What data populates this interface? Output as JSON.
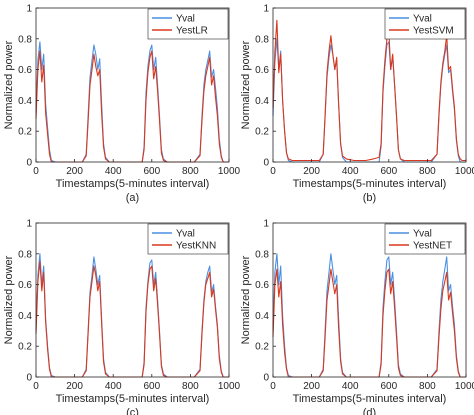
{
  "colors": {
    "yval": "#4a90e2",
    "yest": "#d9381e",
    "axis": "#262626"
  },
  "chart_data": [
    {
      "type": "line",
      "caption": "(a)",
      "xlabel": "Timestamps(5-minutes interval)",
      "ylabel": "Normalized power",
      "xlim": [
        0,
        1000
      ],
      "ylim": [
        0,
        1
      ],
      "xticks": [
        "0",
        "200",
        "400",
        "600",
        "800",
        "1000"
      ],
      "yticks": [
        "0",
        "0.2",
        "0.4",
        "0.6",
        "0.8",
        "1"
      ],
      "legend_position": "top-right",
      "grid": false,
      "series": [
        {
          "name": "Yval",
          "x": [
            0,
            10,
            20,
            30,
            40,
            50,
            60,
            70,
            80,
            100,
            150,
            200,
            240,
            260,
            270,
            280,
            290,
            300,
            310,
            320,
            330,
            340,
            350,
            360,
            380,
            420,
            480,
            520,
            550,
            560,
            570,
            580,
            590,
            600,
            610,
            620,
            630,
            640,
            650,
            660,
            680,
            720,
            780,
            820,
            850,
            860,
            870,
            880,
            890,
            900,
            910,
            920,
            930,
            940,
            950,
            960,
            970,
            980,
            1000
          ],
          "values": [
            0.32,
            0.66,
            0.78,
            0.6,
            0.7,
            0.38,
            0.22,
            0.08,
            0.01,
            0,
            0,
            0,
            0,
            0.05,
            0.3,
            0.55,
            0.66,
            0.76,
            0.7,
            0.6,
            0.67,
            0.38,
            0.12,
            0.03,
            0,
            0,
            0,
            0,
            0,
            0.1,
            0.45,
            0.62,
            0.72,
            0.76,
            0.6,
            0.68,
            0.5,
            0.3,
            0.08,
            0.02,
            0,
            0,
            0,
            0,
            0.05,
            0.3,
            0.5,
            0.6,
            0.66,
            0.72,
            0.55,
            0.6,
            0.48,
            0.35,
            0.15,
            0.04,
            0,
            0,
            0
          ]
        },
        {
          "name": "YestLR",
          "x": [
            0,
            10,
            20,
            30,
            40,
            50,
            60,
            70,
            80,
            100,
            150,
            200,
            240,
            260,
            270,
            280,
            290,
            300,
            310,
            320,
            330,
            340,
            350,
            360,
            380,
            420,
            480,
            520,
            550,
            560,
            570,
            580,
            590,
            600,
            610,
            620,
            630,
            640,
            650,
            660,
            680,
            720,
            780,
            820,
            850,
            860,
            870,
            880,
            890,
            900,
            910,
            920,
            930,
            940,
            950,
            960,
            970,
            980,
            1000
          ],
          "values": [
            0.28,
            0.6,
            0.72,
            0.52,
            0.63,
            0.32,
            0.18,
            0.05,
            0,
            0,
            0,
            0,
            0,
            0.04,
            0.26,
            0.5,
            0.6,
            0.7,
            0.62,
            0.56,
            0.6,
            0.32,
            0.1,
            0.02,
            0,
            0,
            0,
            0,
            0,
            0.08,
            0.4,
            0.58,
            0.68,
            0.72,
            0.54,
            0.62,
            0.46,
            0.27,
            0.06,
            0.01,
            0,
            0,
            0,
            0,
            0.04,
            0.27,
            0.46,
            0.56,
            0.62,
            0.68,
            0.5,
            0.56,
            0.42,
            0.3,
            0.12,
            0.03,
            0,
            0,
            0
          ]
        }
      ]
    },
    {
      "type": "line",
      "caption": "(b)",
      "xlabel": "Timestamps(5-minutes interval)",
      "ylabel": "Normalized power",
      "xlim": [
        0,
        1000
      ],
      "ylim": [
        0,
        1
      ],
      "xticks": [
        "0",
        "200",
        "400",
        "600",
        "800",
        "1000"
      ],
      "yticks": [
        "0",
        "0.2",
        "0.4",
        "0.6",
        "0.8",
        "1"
      ],
      "legend_position": "top-right",
      "grid": false,
      "series": [
        {
          "name": "Yval",
          "x": [
            0,
            10,
            20,
            30,
            40,
            50,
            60,
            70,
            80,
            100,
            150,
            200,
            240,
            260,
            270,
            280,
            290,
            300,
            310,
            320,
            330,
            340,
            350,
            360,
            380,
            420,
            480,
            520,
            550,
            560,
            570,
            580,
            590,
            600,
            610,
            620,
            630,
            640,
            650,
            660,
            680,
            720,
            780,
            820,
            850,
            860,
            870,
            880,
            890,
            900,
            910,
            920,
            930,
            940,
            950,
            960,
            970,
            980,
            1000
          ],
          "values": [
            0.3,
            0.65,
            0.8,
            0.6,
            0.72,
            0.4,
            0.2,
            0.06,
            0.01,
            0,
            0,
            0,
            0,
            0.05,
            0.3,
            0.55,
            0.68,
            0.76,
            0.7,
            0.6,
            0.66,
            0.38,
            0.12,
            0.03,
            0,
            0,
            0,
            0,
            0,
            0.1,
            0.45,
            0.62,
            0.76,
            0.78,
            0.6,
            0.68,
            0.5,
            0.3,
            0.08,
            0.02,
            0,
            0,
            0,
            0,
            0.05,
            0.3,
            0.5,
            0.62,
            0.7,
            0.76,
            0.58,
            0.6,
            0.46,
            0.34,
            0.14,
            0.04,
            0,
            0,
            0
          ]
        },
        {
          "name": "YestSVM",
          "x": [
            0,
            10,
            20,
            30,
            40,
            50,
            60,
            70,
            80,
            100,
            150,
            200,
            240,
            260,
            270,
            280,
            290,
            300,
            310,
            320,
            330,
            340,
            350,
            360,
            380,
            420,
            480,
            520,
            550,
            560,
            570,
            580,
            590,
            600,
            610,
            620,
            630,
            640,
            650,
            660,
            680,
            720,
            780,
            820,
            850,
            860,
            870,
            880,
            890,
            900,
            910,
            920,
            930,
            940,
            950,
            960,
            970,
            980,
            1000
          ],
          "values": [
            0.35,
            0.72,
            0.92,
            0.58,
            0.7,
            0.4,
            0.2,
            0.06,
            0.02,
            0.01,
            0.01,
            0.01,
            0.01,
            0.05,
            0.3,
            0.58,
            0.72,
            0.82,
            0.7,
            0.6,
            0.68,
            0.38,
            0.12,
            0.04,
            0.02,
            0.01,
            0.01,
            0.02,
            0.03,
            0.12,
            0.48,
            0.66,
            0.8,
            0.86,
            0.6,
            0.7,
            0.5,
            0.3,
            0.08,
            0.02,
            0.01,
            0.01,
            0.01,
            0.01,
            0.05,
            0.32,
            0.52,
            0.64,
            0.72,
            0.82,
            0.6,
            0.62,
            0.48,
            0.36,
            0.15,
            0.05,
            0.02,
            0.01,
            0.01
          ]
        }
      ]
    },
    {
      "type": "line",
      "caption": "(c)",
      "xlabel": "Timestamps(5-minutes interval)",
      "ylabel": "Normalized power",
      "xlim": [
        0,
        1000
      ],
      "ylim": [
        0,
        1
      ],
      "xticks": [
        "0",
        "200",
        "400",
        "600",
        "800",
        "1000"
      ],
      "yticks": [
        "0",
        "0.2",
        "0.4",
        "0.6",
        "0.8",
        "1"
      ],
      "legend_position": "top-right",
      "grid": false,
      "series": [
        {
          "name": "Yval",
          "x": [
            0,
            10,
            20,
            30,
            40,
            50,
            60,
            70,
            80,
            100,
            150,
            200,
            240,
            260,
            270,
            280,
            290,
            300,
            310,
            320,
            330,
            340,
            350,
            360,
            380,
            420,
            480,
            520,
            550,
            560,
            570,
            580,
            590,
            600,
            610,
            620,
            630,
            640,
            650,
            660,
            680,
            720,
            780,
            820,
            850,
            860,
            870,
            880,
            890,
            900,
            910,
            920,
            930,
            940,
            950,
            960,
            970,
            980,
            1000
          ],
          "values": [
            0.3,
            0.66,
            0.8,
            0.6,
            0.72,
            0.38,
            0.2,
            0.06,
            0.01,
            0,
            0,
            0,
            0,
            0.05,
            0.3,
            0.55,
            0.66,
            0.78,
            0.7,
            0.6,
            0.66,
            0.38,
            0.12,
            0.03,
            0,
            0,
            0,
            0,
            0,
            0.1,
            0.45,
            0.62,
            0.74,
            0.76,
            0.6,
            0.68,
            0.5,
            0.3,
            0.08,
            0.02,
            0,
            0,
            0,
            0,
            0.05,
            0.3,
            0.5,
            0.62,
            0.68,
            0.72,
            0.55,
            0.6,
            0.46,
            0.34,
            0.14,
            0.04,
            0,
            0,
            0
          ]
        },
        {
          "name": "YestKNN",
          "x": [
            0,
            10,
            20,
            30,
            40,
            50,
            60,
            70,
            80,
            100,
            150,
            200,
            240,
            260,
            270,
            280,
            290,
            300,
            310,
            320,
            330,
            340,
            350,
            360,
            380,
            420,
            480,
            520,
            550,
            560,
            570,
            580,
            590,
            600,
            610,
            620,
            630,
            640,
            650,
            660,
            680,
            720,
            780,
            820,
            850,
            860,
            870,
            880,
            890,
            900,
            910,
            920,
            930,
            940,
            950,
            960,
            970,
            980,
            1000
          ],
          "values": [
            0.28,
            0.62,
            0.75,
            0.56,
            0.68,
            0.36,
            0.18,
            0.05,
            0,
            0,
            0,
            0,
            0,
            0.04,
            0.28,
            0.52,
            0.62,
            0.72,
            0.66,
            0.56,
            0.62,
            0.35,
            0.1,
            0.02,
            0,
            0,
            0,
            0,
            0,
            0.08,
            0.42,
            0.6,
            0.7,
            0.72,
            0.56,
            0.64,
            0.47,
            0.28,
            0.07,
            0.01,
            0,
            0,
            0,
            0,
            0.04,
            0.28,
            0.48,
            0.6,
            0.64,
            0.68,
            0.52,
            0.57,
            0.44,
            0.32,
            0.12,
            0.03,
            0,
            0,
            0
          ]
        }
      ]
    },
    {
      "type": "line",
      "caption": "(d)",
      "xlabel": "Timestamps(5-minutes interval)",
      "ylabel": "Normalized power",
      "xlim": [
        0,
        1000
      ],
      "ylim": [
        0,
        1
      ],
      "xticks": [
        "0",
        "200",
        "400",
        "600",
        "800",
        "1000"
      ],
      "yticks": [
        "0",
        "0.2",
        "0.4",
        "0.6",
        "0.8",
        "1"
      ],
      "legend_position": "top-right",
      "grid": false,
      "series": [
        {
          "name": "Yval",
          "x": [
            0,
            10,
            20,
            30,
            40,
            50,
            60,
            70,
            80,
            100,
            150,
            200,
            240,
            260,
            270,
            280,
            290,
            300,
            310,
            320,
            330,
            340,
            350,
            360,
            380,
            420,
            480,
            520,
            550,
            560,
            570,
            580,
            590,
            600,
            610,
            620,
            630,
            640,
            650,
            660,
            680,
            720,
            780,
            820,
            850,
            860,
            870,
            880,
            890,
            900,
            910,
            920,
            930,
            940,
            950,
            960,
            970,
            980,
            1000
          ],
          "values": [
            0.3,
            0.68,
            0.8,
            0.6,
            0.72,
            0.4,
            0.2,
            0.06,
            0.01,
            0,
            0,
            0,
            0,
            0.05,
            0.3,
            0.56,
            0.68,
            0.8,
            0.7,
            0.6,
            0.66,
            0.38,
            0.12,
            0.03,
            0,
            0,
            0,
            0,
            0,
            0.1,
            0.45,
            0.62,
            0.76,
            0.78,
            0.6,
            0.68,
            0.5,
            0.3,
            0.08,
            0.02,
            0,
            0,
            0,
            0,
            0.05,
            0.3,
            0.5,
            0.62,
            0.7,
            0.78,
            0.56,
            0.6,
            0.46,
            0.34,
            0.14,
            0.04,
            0,
            0,
            0
          ]
        },
        {
          "name": "YestNET",
          "x": [
            0,
            10,
            20,
            30,
            40,
            50,
            60,
            70,
            80,
            100,
            150,
            200,
            240,
            260,
            270,
            280,
            290,
            300,
            310,
            320,
            330,
            340,
            350,
            360,
            380,
            420,
            480,
            520,
            550,
            560,
            570,
            580,
            590,
            600,
            610,
            620,
            630,
            640,
            650,
            660,
            680,
            720,
            780,
            820,
            850,
            860,
            870,
            880,
            890,
            900,
            910,
            920,
            930,
            940,
            950,
            960,
            970,
            980,
            1000
          ],
          "values": [
            0.26,
            0.6,
            0.7,
            0.52,
            0.62,
            0.34,
            0.16,
            0.05,
            0,
            0,
            0,
            0,
            0,
            0.04,
            0.26,
            0.5,
            0.6,
            0.7,
            0.62,
            0.54,
            0.6,
            0.32,
            0.1,
            0.02,
            0,
            0,
            0,
            0,
            0,
            0.08,
            0.4,
            0.56,
            0.68,
            0.7,
            0.54,
            0.62,
            0.45,
            0.26,
            0.06,
            0.01,
            0,
            0,
            0,
            0,
            0.04,
            0.26,
            0.44,
            0.56,
            0.62,
            0.68,
            0.5,
            0.55,
            0.42,
            0.3,
            0.12,
            0.03,
            0,
            0,
            0
          ]
        }
      ]
    }
  ]
}
